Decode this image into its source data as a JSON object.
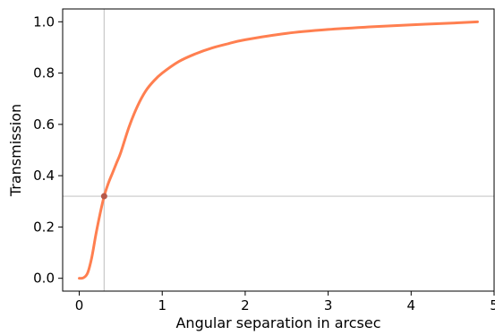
{
  "chart_data": {
    "type": "line",
    "xlabel": "Angular separation in arcsec",
    "ylabel": "Transmission",
    "xlim": [
      -0.2,
      5.0
    ],
    "ylim": [
      -0.05,
      1.05
    ],
    "x_ticks": [
      0,
      1,
      2,
      3,
      4,
      5
    ],
    "x_tick_labels": [
      "0",
      "1",
      "2",
      "3",
      "4",
      "5"
    ],
    "y_ticks": [
      0.0,
      0.2,
      0.4,
      0.6,
      0.8,
      1.0
    ],
    "y_tick_labels": [
      "0.0",
      "0.2",
      "0.4",
      "0.6",
      "0.8",
      "1.0"
    ],
    "grid": false,
    "series": [
      {
        "color": "#ff7f50",
        "x": [
          0.0,
          0.05,
          0.1,
          0.15,
          0.2,
          0.25,
          0.3,
          0.35,
          0.4,
          0.45,
          0.5,
          0.6,
          0.7,
          0.8,
          0.9,
          1.0,
          1.2,
          1.4,
          1.6,
          1.8,
          2.0,
          2.5,
          3.0,
          3.5,
          4.0,
          4.5,
          4.8
        ],
        "y": [
          0.0,
          0.002,
          0.02,
          0.08,
          0.17,
          0.25,
          0.32,
          0.37,
          0.41,
          0.45,
          0.49,
          0.59,
          0.67,
          0.73,
          0.77,
          0.8,
          0.845,
          0.875,
          0.898,
          0.915,
          0.93,
          0.955,
          0.97,
          0.98,
          0.988,
          0.995,
          1.0
        ]
      }
    ],
    "reference_lines": {
      "color": "#c8c8c8",
      "vertical_x": 0.3,
      "horizontal_y": 0.32
    },
    "marker": {
      "x": 0.3,
      "y": 0.32,
      "color": "#b5594a"
    }
  }
}
